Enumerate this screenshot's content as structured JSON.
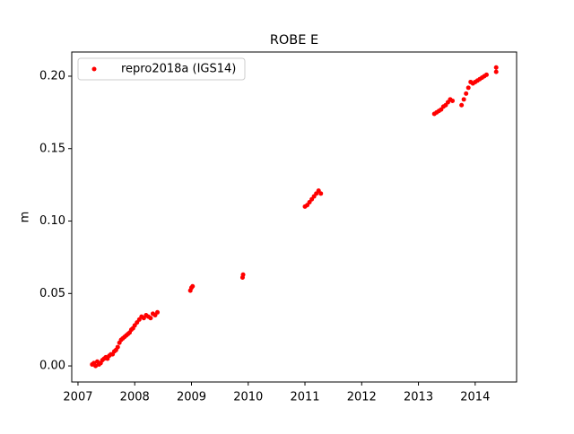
{
  "chart_data": {
    "type": "scatter",
    "title": "ROBE E",
    "y_label": "m",
    "legend": "upper left",
    "grid": false,
    "xlim": [
      2006.89,
      2014.73
    ],
    "ylim": [
      -0.0111,
      0.2167
    ],
    "xticks": [
      2007,
      2008,
      2009,
      2010,
      2011,
      2012,
      2013,
      2014
    ],
    "yticks": [
      {
        "value": 0,
        "label": "0.00"
      },
      {
        "value": 0.05,
        "label": "0.05"
      },
      {
        "value": 0.1,
        "label": "0.10"
      },
      {
        "value": 0.15,
        "label": "0.15"
      },
      {
        "value": 0.2,
        "label": "0.20"
      }
    ],
    "series": [
      {
        "name": "repro2018a (IGS14)",
        "color": "#ff0000",
        "x": [
          2007.25,
          2007.28,
          2007.31,
          2007.34,
          2007.37,
          2007.4,
          2007.43,
          2007.46,
          2007.49,
          2007.52,
          2007.55,
          2007.58,
          2007.61,
          2007.64,
          2007.67,
          2007.7,
          2007.73,
          2007.76,
          2007.79,
          2007.82,
          2007.85,
          2007.88,
          2007.91,
          2007.94,
          2007.97,
          2008.0,
          2008.04,
          2008.08,
          2008.12,
          2008.16,
          2008.2,
          2008.24,
          2008.28,
          2008.32,
          2008.36,
          2008.4,
          2008.98,
          2009.0,
          2009.02,
          2009.9,
          2009.91,
          2011.0,
          2011.04,
          2011.08,
          2011.12,
          2011.16,
          2011.2,
          2011.24,
          2011.28,
          2013.28,
          2013.32,
          2013.36,
          2013.4,
          2013.44,
          2013.48,
          2013.52,
          2013.56,
          2013.6,
          2013.76,
          2013.8,
          2013.84,
          2013.88,
          2013.92,
          2013.96,
          2014.0,
          2014.04,
          2014.08,
          2014.12,
          2014.16,
          2014.2,
          2014.37,
          2014.37
        ],
        "values": [
          0.001,
          0.002,
          0.0,
          0.003,
          0.001,
          0.002,
          0.004,
          0.005,
          0.006,
          0.005,
          0.007,
          0.008,
          0.008,
          0.01,
          0.011,
          0.013,
          0.016,
          0.018,
          0.019,
          0.02,
          0.021,
          0.022,
          0.023,
          0.025,
          0.026,
          0.028,
          0.03,
          0.032,
          0.034,
          0.033,
          0.035,
          0.034,
          0.033,
          0.036,
          0.035,
          0.037,
          0.052,
          0.054,
          0.055,
          0.061,
          0.063,
          0.11,
          0.111,
          0.113,
          0.115,
          0.117,
          0.119,
          0.121,
          0.119,
          0.174,
          0.175,
          0.176,
          0.177,
          0.179,
          0.18,
          0.182,
          0.184,
          0.183,
          0.18,
          0.184,
          0.188,
          0.192,
          0.196,
          0.195,
          0.196,
          0.197,
          0.198,
          0.199,
          0.2,
          0.201,
          0.203,
          0.206
        ]
      }
    ]
  }
}
